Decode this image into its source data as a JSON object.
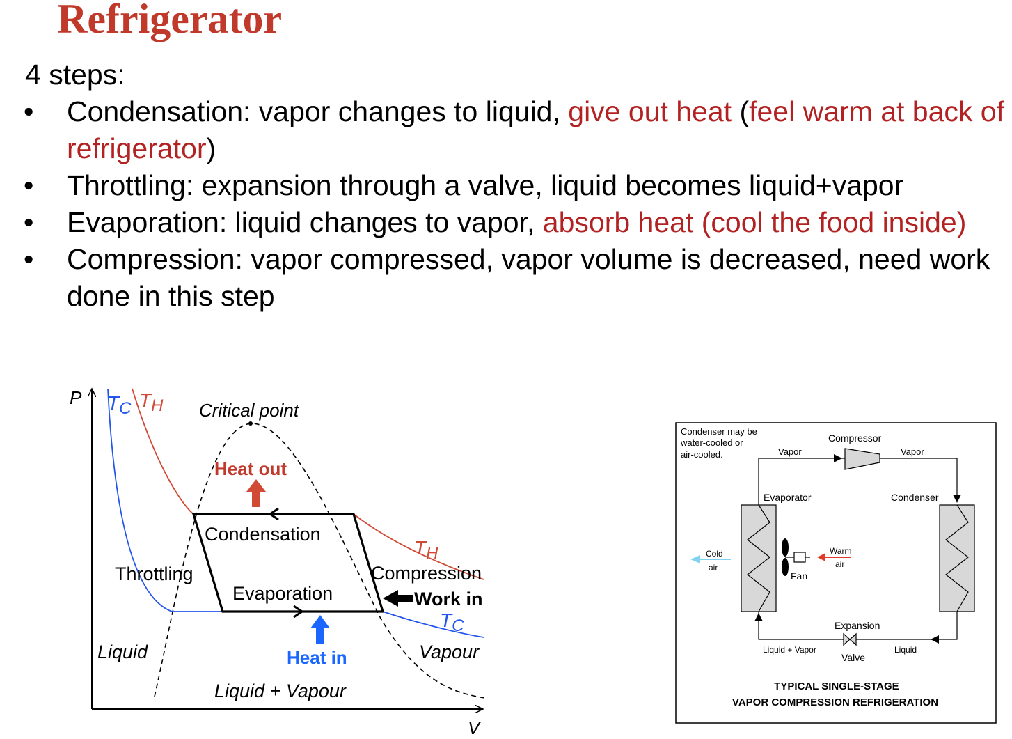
{
  "slide": {
    "title": "Refrigerator",
    "intro": "4 steps:"
  },
  "bullets": [
    {
      "parts": [
        {
          "text": "Condensation: vapor changes to liquid, ",
          "color": "black"
        },
        {
          "text": "give out heat",
          "color": "red"
        },
        {
          "text": " (",
          "color": "black"
        },
        {
          "text": "feel warm at back of refrigerator",
          "color": "red"
        },
        {
          "text": ")",
          "color": "black"
        }
      ]
    },
    {
      "parts": [
        {
          "text": "Throttling: expansion through a valve, liquid becomes liquid+vapor",
          "color": "black"
        }
      ]
    },
    {
      "parts": [
        {
          "text": "Evaporation: liquid changes to vapor, ",
          "color": "black"
        },
        {
          "text": "absorb heat (cool the food inside)",
          "color": "red"
        }
      ]
    },
    {
      "parts": [
        {
          "text": "Compression: vapor compressed, vapor volume is decreased, need work done in this step",
          "color": "black"
        }
      ]
    }
  ],
  "bullet_symbol": "•",
  "pv_diagram": {
    "axis_p": "P",
    "axis_v": "V",
    "tc_label": "T",
    "tc_sub": "C",
    "th_label": "T",
    "th_sub": "H",
    "critical_point": "Critical point",
    "heat_out": "Heat out",
    "condensation": "Condensation",
    "throttling": "Throttling",
    "evaporation": "Evaporation",
    "compression": "Compression",
    "work_in": "Work in",
    "heat_in": "Heat in",
    "liquid": "Liquid",
    "vapour": "Vapour",
    "liquid_vapour": "Liquid + Vapour",
    "colors": {
      "hot": "#d04a35",
      "cold": "#2255ee",
      "heat_in": "#1a66ff",
      "heat_out": "#c0392b"
    }
  },
  "schematic": {
    "note_lines": [
      "Condenser may be",
      "water-cooled or",
      "air-cooled."
    ],
    "compressor": "Compressor",
    "vapor_left": "Vapor",
    "vapor_right": "Vapor",
    "evaporator": "Evaporator",
    "condenser": "Condenser",
    "cold_air_lines": [
      "Cold",
      "air"
    ],
    "warm_air_lines": [
      "Warm",
      "air"
    ],
    "fan": "Fan",
    "expansion": "Expansion",
    "valve": "Valve",
    "liquid_vapor": "Liquid + Vapor",
    "liquid": "Liquid",
    "caption_lines": [
      "TYPICAL SINGLE-STAGE",
      "VAPOR COMPRESSION REFRIGERATION"
    ],
    "colors": {
      "cold_air": "#7fd3f0",
      "warm_air": "#e23a2a"
    }
  }
}
